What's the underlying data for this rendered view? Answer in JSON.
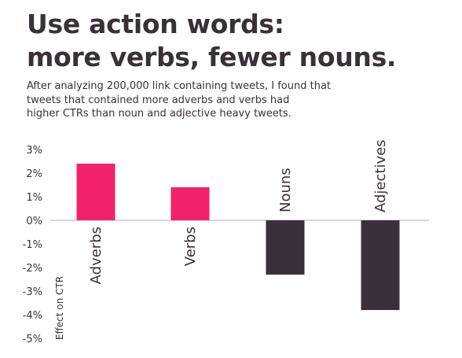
{
  "header": {
    "title_lines": [
      "Use action words:",
      "more verbs, fewer nouns."
    ],
    "subtitle_lines": [
      "After analyzing 200,000 link containing tweets, I found that",
      "tweets that contained more adverbs and verbs had",
      "higher CTRs than noun and adjective heavy tweets."
    ]
  },
  "chart_data": {
    "type": "bar",
    "categories": [
      "Adverbs",
      "Verbs",
      "Nouns",
      "Adjectives"
    ],
    "values": [
      2.4,
      1.4,
      -2.3,
      -3.8
    ],
    "ylabel": "Effect on CTR",
    "ylim": [
      -5,
      3
    ],
    "yticks": [
      3,
      2,
      1,
      0,
      -1,
      -2,
      -3,
      -4,
      -5
    ],
    "ytick_labels": [
      "3%",
      "2%",
      "1%",
      "0%",
      "-1%",
      "-2%",
      "-3%",
      "-4%",
      "-5%"
    ],
    "grid": false,
    "colors": {
      "positive": "#f2226a",
      "negative": "#3a3039",
      "axis": "#cccccc",
      "text": "#3a3039"
    }
  }
}
